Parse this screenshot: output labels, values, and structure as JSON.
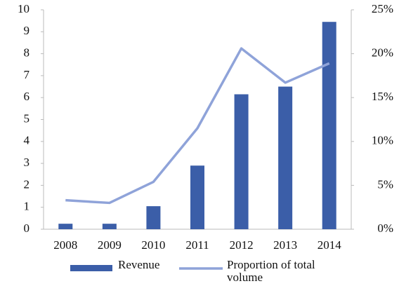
{
  "chart_data": {
    "type": "bar_line",
    "categories": [
      "2008",
      "2009",
      "2010",
      "2011",
      "2012",
      "2013",
      "2014"
    ],
    "series": [
      {
        "name": "Revenue",
        "color": "#3b5ea8",
        "type": "bar",
        "values": [
          0.25,
          0.25,
          1.05,
          2.9,
          6.15,
          6.5,
          9.45
        ]
      },
      {
        "name": "Proportion of total volume",
        "color": "#8fa3d9",
        "type": "line",
        "axis": "y2",
        "values": [
          3.3,
          3.0,
          5.4,
          11.5,
          20.6,
          16.7,
          18.9
        ]
      }
    ],
    "ylim": [
      0,
      10
    ],
    "yticks": [
      0,
      1,
      2,
      3,
      4,
      5,
      6,
      7,
      8,
      9,
      10
    ],
    "y2lim": [
      0,
      25
    ],
    "y2ticks": [
      {
        "value": 0,
        "label": "0%"
      },
      {
        "value": 5,
        "label": "5%"
      },
      {
        "value": 10,
        "label": "10%"
      },
      {
        "value": 15,
        "label": "15%"
      },
      {
        "value": 20,
        "label": "20%"
      },
      {
        "value": 25,
        "label": "25%"
      }
    ],
    "legend": "bottom"
  }
}
